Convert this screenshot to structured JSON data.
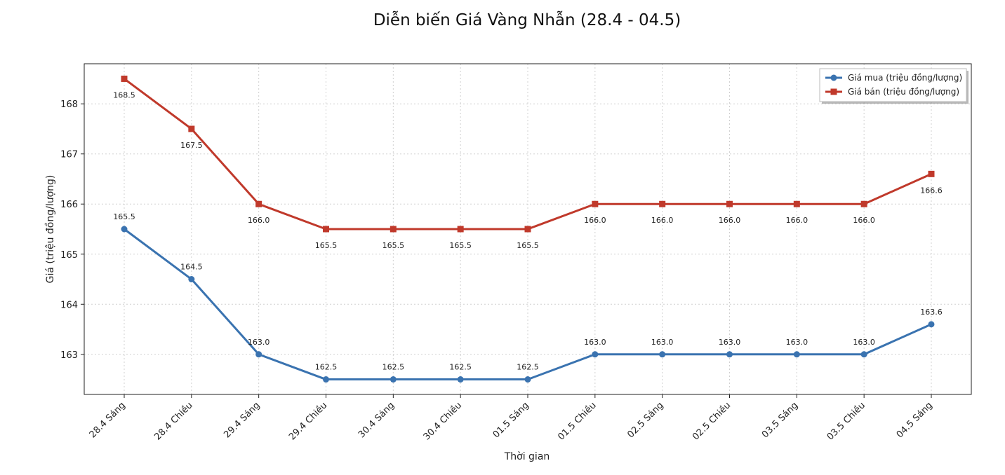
{
  "chart_data": {
    "type": "line",
    "title": "Diễn biến Giá Vàng Nhẫn (28.4 - 04.5)",
    "xlabel": "Thời gian",
    "ylabel": "Giá (triệu đồng/lượng)",
    "categories": [
      "28.4 Sáng",
      "28.4 Chiều",
      "29.4 Sáng",
      "29.4 Chiều",
      "30.4 Sáng",
      "30.4 Chiều",
      "01.5 Sáng",
      "01.5 Chiều",
      "02.5 Sáng",
      "02.5 Chiều",
      "03.5 Sáng",
      "03.5 Chiều",
      "04.5 Sáng"
    ],
    "yticks": [
      163,
      164,
      165,
      166,
      167,
      168
    ],
    "ylim": [
      162.2,
      168.8
    ],
    "grid": true,
    "legend_position": "top-right",
    "series": [
      {
        "name": "Giá mua (triệu đồng/lượng)",
        "color": "#3a73b0",
        "marker": "circle",
        "values": [
          165.5,
          164.5,
          163.0,
          162.5,
          162.5,
          162.5,
          162.5,
          163.0,
          163.0,
          163.0,
          163.0,
          163.0,
          163.6
        ],
        "labels": [
          "165.5",
          "164.5",
          "163.0",
          "162.5",
          "162.5",
          "162.5",
          "162.5",
          "163.0",
          "163.0",
          "163.0",
          "163.0",
          "163.0",
          "163.6"
        ]
      },
      {
        "name": "Giá bán (triệu đồng/lượng)",
        "color": "#c0392b",
        "marker": "square",
        "values": [
          168.5,
          167.5,
          166.0,
          165.5,
          165.5,
          165.5,
          165.5,
          166.0,
          166.0,
          166.0,
          166.0,
          166.0,
          166.6
        ],
        "labels": [
          "168.5",
          "167.5",
          "166.0",
          "165.5",
          "165.5",
          "165.5",
          "165.5",
          "166.0",
          "166.0",
          "166.0",
          "166.0",
          "166.0",
          "166.6"
        ]
      }
    ]
  }
}
